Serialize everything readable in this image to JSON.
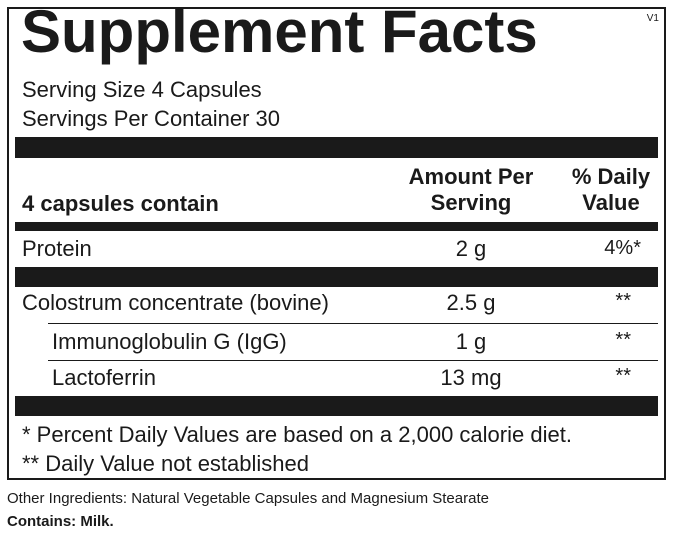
{
  "panel": {
    "title": "Supplement Facts",
    "version": "V1",
    "serving_size": "Serving Size 4 Capsules",
    "servings_per_container": "Servings Per Container  30"
  },
  "header": {
    "col1": "4 capsules contain",
    "col2_line1": "Amount Per",
    "col2_line2": "Serving",
    "col3_line1": "% Daily",
    "col3_line2": "Value"
  },
  "rows": [
    {
      "name": "Protein",
      "amount": "2 g",
      "dv": "4%*"
    },
    {
      "name": "Colostrum concentrate (bovine)",
      "amount": "2.5 g",
      "dv": "**"
    },
    {
      "name": "Immunoglobulin G (IgG)",
      "amount": "1 g",
      "dv": "**"
    },
    {
      "name": "Lactoferrin",
      "amount": "13 mg",
      "dv": "**"
    }
  ],
  "footnotes": {
    "line1": "* Percent Daily Values are based on a 2,000 calorie diet.",
    "line2": "** Daily Value not established"
  },
  "other_ingredients": "Other Ingredients: Natural Vegetable Capsules and Magnesium Stearate",
  "contains": "Contains: Milk."
}
